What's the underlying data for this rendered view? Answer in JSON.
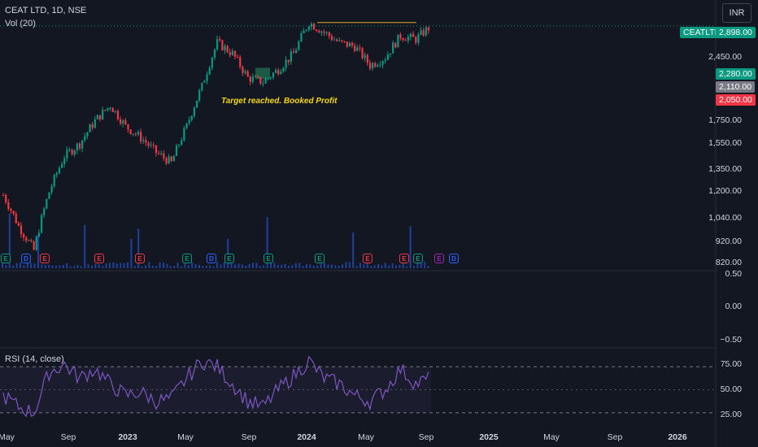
{
  "header": {
    "title": "CEAT LTD, 1D, NSE",
    "volume_label": "Vol (20)",
    "currency": "INR"
  },
  "annotation": "Target reached. Booked Profit",
  "price_axis": {
    "ticks": [
      "2,450.00",
      "1,750.00",
      "1,550.00",
      "1,350.00",
      "1,200.00",
      "1,040.00",
      "920.00",
      "820.00"
    ],
    "tick_values": [
      2450,
      1750,
      1550,
      1350,
      1200,
      1040,
      920,
      820
    ],
    "scale": "log"
  },
  "badges": [
    {
      "label": "CEATLTD",
      "value": "2,898.00",
      "color": "#089981"
    },
    {
      "value": "2,280.00",
      "color": "#089981"
    },
    {
      "value": "2,110.00",
      "color": "#787b86"
    },
    {
      "value": "2,050.00",
      "color": "#f23645"
    }
  ],
  "oscillator_axis": {
    "ticks": [
      "0.50",
      "0.00",
      "−0.50"
    ]
  },
  "rsi": {
    "label": "RSI (14, close)",
    "ticks": [
      "75.00",
      "50.00",
      "25.00"
    ],
    "upper": 70,
    "lower": 30
  },
  "time_axis": {
    "labels": [
      {
        "text": "May",
        "bold": false
      },
      {
        "text": "Sep",
        "bold": false
      },
      {
        "text": "2023",
        "bold": true
      },
      {
        "text": "May",
        "bold": false
      },
      {
        "text": "Sep",
        "bold": false
      },
      {
        "text": "2024",
        "bold": true
      },
      {
        "text": "May",
        "bold": false
      },
      {
        "text": "Sep",
        "bold": false
      },
      {
        "text": "2025",
        "bold": true
      },
      {
        "text": "May",
        "bold": false
      },
      {
        "text": "Sep",
        "bold": false
      },
      {
        "text": "2026",
        "bold": true
      }
    ]
  },
  "events": [
    {
      "type": "E",
      "color": "#089981"
    },
    {
      "type": "D",
      "color": "#2962ff"
    },
    {
      "type": "E",
      "color": "#f23645"
    },
    {
      "type": "E",
      "color": "#f23645"
    },
    {
      "type": "E",
      "color": "#f23645"
    },
    {
      "type": "E",
      "color": "#089981"
    },
    {
      "type": "D",
      "color": "#2962ff"
    },
    {
      "type": "E",
      "color": "#089981"
    },
    {
      "type": "E",
      "color": "#089981"
    },
    {
      "type": "E",
      "color": "#089981"
    },
    {
      "type": "E",
      "color": "#f23645"
    },
    {
      "type": "E",
      "color": "#f23645"
    },
    {
      "type": "E",
      "color": "#089981"
    },
    {
      "type": "D",
      "color": "#2962ff"
    },
    {
      "type": "E",
      "color": "#9c27b0"
    }
  ],
  "chart_data": {
    "type": "line",
    "title": "CEAT LTD, 1D, NSE",
    "x": [
      "2022-05",
      "2022-06",
      "2022-07",
      "2022-08",
      "2022-09",
      "2022-10",
      "2022-11",
      "2022-12",
      "2023-01",
      "2023-02",
      "2023-03",
      "2023-04",
      "2023-05",
      "2023-06",
      "2023-07",
      "2023-08",
      "2023-09",
      "2023-10",
      "2023-11",
      "2023-12",
      "2024-01",
      "2024-02",
      "2024-03",
      "2024-04",
      "2024-05",
      "2024-06",
      "2024-07",
      "2024-08",
      "2024-09"
    ],
    "series": [
      {
        "values": [
          1180,
          1000,
          880,
          1200,
          1450,
          1550,
          1750,
          1900,
          1700,
          1600,
          1480,
          1400,
          1700,
          2100,
          2650,
          2500,
          2200,
          2150,
          2300,
          2500,
          2950,
          2800,
          2650,
          2600,
          2350,
          2450,
          2750,
          2700,
          2898
        ]
      }
    ],
    "rsi_values": [
      45,
      35,
      30,
      65,
      72,
      60,
      68,
      55,
      45,
      48,
      40,
      42,
      60,
      75,
      70,
      55,
      40,
      35,
      50,
      62,
      75,
      60,
      55,
      45,
      40,
      50,
      68,
      55,
      60
    ],
    "resistance": 2950,
    "ylim": [
      800,
      3050
    ]
  }
}
